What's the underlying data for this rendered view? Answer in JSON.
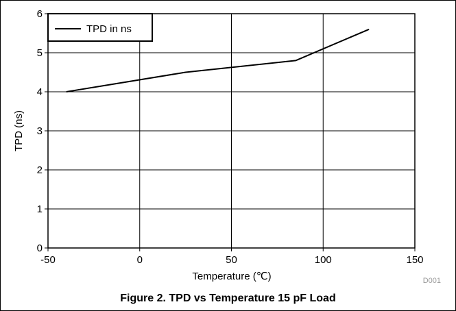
{
  "chart_data": {
    "type": "line",
    "title": "",
    "xlabel": "Temperature (℃)",
    "ylabel": "TPD (ns)",
    "xlim": [
      -50,
      150
    ],
    "ylim": [
      0,
      6
    ],
    "xticks": [
      -50,
      0,
      50,
      100,
      150
    ],
    "yticks": [
      0,
      1,
      2,
      3,
      4,
      5,
      6
    ],
    "grid": true,
    "legend_position": "top-left",
    "series": [
      {
        "name": "TPD in ns",
        "color": "#000000",
        "x": [
          -40,
          25,
          85,
          125
        ],
        "y": [
          4.0,
          4.5,
          4.8,
          5.6
        ]
      }
    ]
  },
  "figure_id": "D001",
  "caption": "Figure 2. TPD vs Temperature 15 pF Load"
}
